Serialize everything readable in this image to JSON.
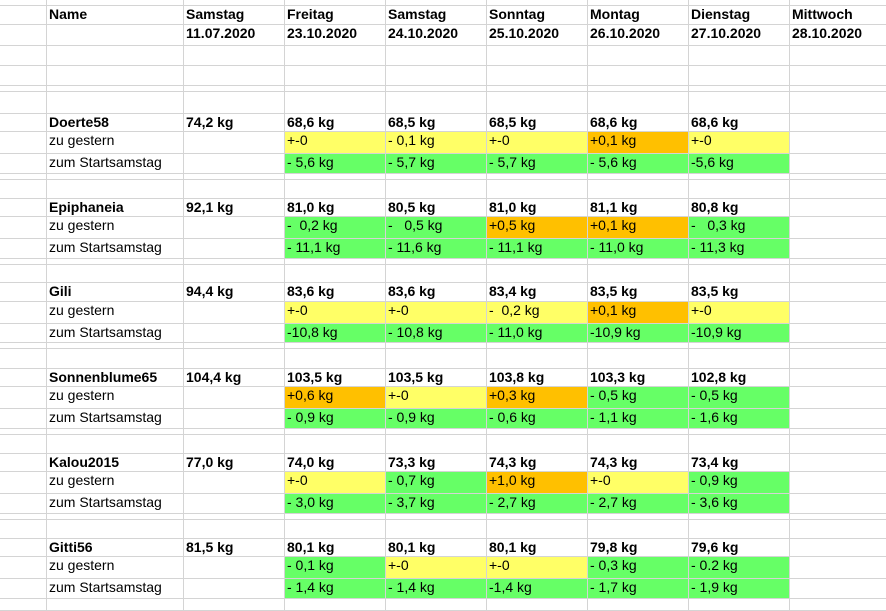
{
  "colors": {
    "yellow": "#ffff66",
    "orange": "#ffc000",
    "green": "#66ff66"
  },
  "header": {
    "name_label": "Name",
    "days": [
      {
        "day": "Samstag",
        "date": "11.07.2020"
      },
      {
        "day": "Freitag",
        "date": "23.10.2020"
      },
      {
        "day": "Samstag",
        "date": "24.10.2020"
      },
      {
        "day": "Sonntag",
        "date": "25.10.2020"
      },
      {
        "day": "Montag",
        "date": "26.10.2020"
      },
      {
        "day": "Dienstag",
        "date": "27.10.2020"
      },
      {
        "day": "Mittwoch",
        "date": "28.10.2020"
      }
    ]
  },
  "row_labels": {
    "vs_yesterday": "zu gestern",
    "vs_start": "zum Startsamstag"
  },
  "participants": [
    {
      "name": "Doerte58",
      "start": "74,2 kg",
      "weights": [
        "68,6 kg",
        "68,5 kg",
        "68,5 kg",
        "68,6 kg",
        "68,6 kg"
      ],
      "yesterday": [
        {
          "text": "+-0",
          "status": "yellow"
        },
        {
          "text": "- 0,1 kg",
          "status": "yellow"
        },
        {
          "text": "+-0",
          "status": "yellow"
        },
        {
          "text": "+0,1 kg",
          "status": "orange"
        },
        {
          "text": "+-0",
          "status": "yellow"
        }
      ],
      "from_start": [
        {
          "text": "- 5,6 kg",
          "status": "green"
        },
        {
          "text": "- 5,7 kg",
          "status": "green"
        },
        {
          "text": "- 5,7 kg",
          "status": "green"
        },
        {
          "text": "- 5,6 kg",
          "status": "green"
        },
        {
          "text": "-5,6 kg",
          "status": "green"
        }
      ]
    },
    {
      "name": "Epiphaneia",
      "start": "92,1 kg",
      "weights": [
        "81,0 kg",
        "80,5 kg",
        "81,0 kg",
        "81,1 kg",
        "80,8 kg"
      ],
      "yesterday": [
        {
          "text": "-  0,2 kg",
          "status": "green"
        },
        {
          "text": "-   0,5 kg",
          "status": "green"
        },
        {
          "text": "+0,5 kg",
          "status": "orange"
        },
        {
          "text": "+0,1 kg",
          "status": "orange"
        },
        {
          "text": "-   0,3 kg",
          "status": "green"
        }
      ],
      "from_start": [
        {
          "text": "- 11,1 kg",
          "status": "green"
        },
        {
          "text": "- 11,6 kg",
          "status": "green"
        },
        {
          "text": "- 11,1 kg",
          "status": "green"
        },
        {
          "text": "- 11,0 kg",
          "status": "green"
        },
        {
          "text": "- 11,3 kg",
          "status": "green"
        }
      ]
    },
    {
      "name": "Gili",
      "start": "94,4 kg",
      "weights": [
        "83,6 kg",
        "83,6 kg",
        "83,4 kg",
        "83,5 kg",
        "83,5 kg"
      ],
      "yesterday": [
        {
          "text": "+-0",
          "status": "yellow"
        },
        {
          "text": "+-0",
          "status": "yellow"
        },
        {
          "text": "-  0,2 kg",
          "status": "yellow"
        },
        {
          "text": "+0,1 kg",
          "status": "orange"
        },
        {
          "text": "+-0",
          "status": "yellow"
        }
      ],
      "from_start": [
        {
          "text": "-10,8 kg",
          "status": "green"
        },
        {
          "text": "- 10,8 kg",
          "status": "green"
        },
        {
          "text": "- 11,0 kg",
          "status": "green"
        },
        {
          "text": "-10,9 kg",
          "status": "green"
        },
        {
          "text": "-10,9 kg",
          "status": "green"
        }
      ]
    },
    {
      "name": "Sonnenblume65",
      "start": "104,4 kg",
      "weights": [
        "103,5 kg",
        "103,5 kg",
        "103,8 kg",
        "103,3 kg",
        "102,8 kg"
      ],
      "yesterday": [
        {
          "text": "+0,6 kg",
          "status": "orange"
        },
        {
          "text": "+-0",
          "status": "yellow"
        },
        {
          "text": "+0,3 kg",
          "status": "orange"
        },
        {
          "text": "- 0,5 kg",
          "status": "green"
        },
        {
          "text": "- 0,5 kg",
          "status": "green"
        }
      ],
      "from_start": [
        {
          "text": "- 0,9 kg",
          "status": "green"
        },
        {
          "text": "- 0,9 kg",
          "status": "green"
        },
        {
          "text": "- 0,6 kg",
          "status": "green"
        },
        {
          "text": "- 1,1 kg",
          "status": "green"
        },
        {
          "text": "- 1,6 kg",
          "status": "green"
        }
      ]
    },
    {
      "name": "Kalou2015",
      "start": "77,0 kg",
      "weights": [
        "74,0 kg",
        "73,3 kg",
        "74,3 kg",
        "74,3 kg",
        "73,4 kg"
      ],
      "yesterday": [
        {
          "text": "+-0",
          "status": "yellow"
        },
        {
          "text": "- 0,7 kg",
          "status": "green"
        },
        {
          "text": "+1,0 kg",
          "status": "orange"
        },
        {
          "text": "+-0",
          "status": "yellow"
        },
        {
          "text": "- 0,9 kg",
          "status": "green"
        }
      ],
      "from_start": [
        {
          "text": "- 3,0 kg",
          "status": "green"
        },
        {
          "text": "- 3,7 kg",
          "status": "green"
        },
        {
          "text": "- 2,7 kg",
          "status": "green"
        },
        {
          "text": "- 2,7 kg",
          "status": "green"
        },
        {
          "text": "- 3,6 kg",
          "status": "green"
        }
      ]
    },
    {
      "name": "Gitti56",
      "start": "81,5 kg",
      "weights": [
        "80,1 kg",
        "80,1 kg",
        "80,1 kg",
        "79,8 kg",
        "79,6 kg"
      ],
      "yesterday": [
        {
          "text": "- 0,1 kg",
          "status": "green"
        },
        {
          "text": "+-0",
          "status": "yellow"
        },
        {
          "text": "+-0",
          "status": "yellow"
        },
        {
          "text": "- 0,3 kg",
          "status": "green"
        },
        {
          "text": "- 0.2 kg",
          "status": "green"
        }
      ],
      "from_start": [
        {
          "text": "- 1,4 kg",
          "status": "green"
        },
        {
          "text": "- 1,4 kg",
          "status": "green"
        },
        {
          "text": "-1,4 kg",
          "status": "green"
        },
        {
          "text": "- 1,7 kg",
          "status": "green"
        },
        {
          "text": "- 1,9 kg",
          "status": "green"
        }
      ]
    }
  ]
}
